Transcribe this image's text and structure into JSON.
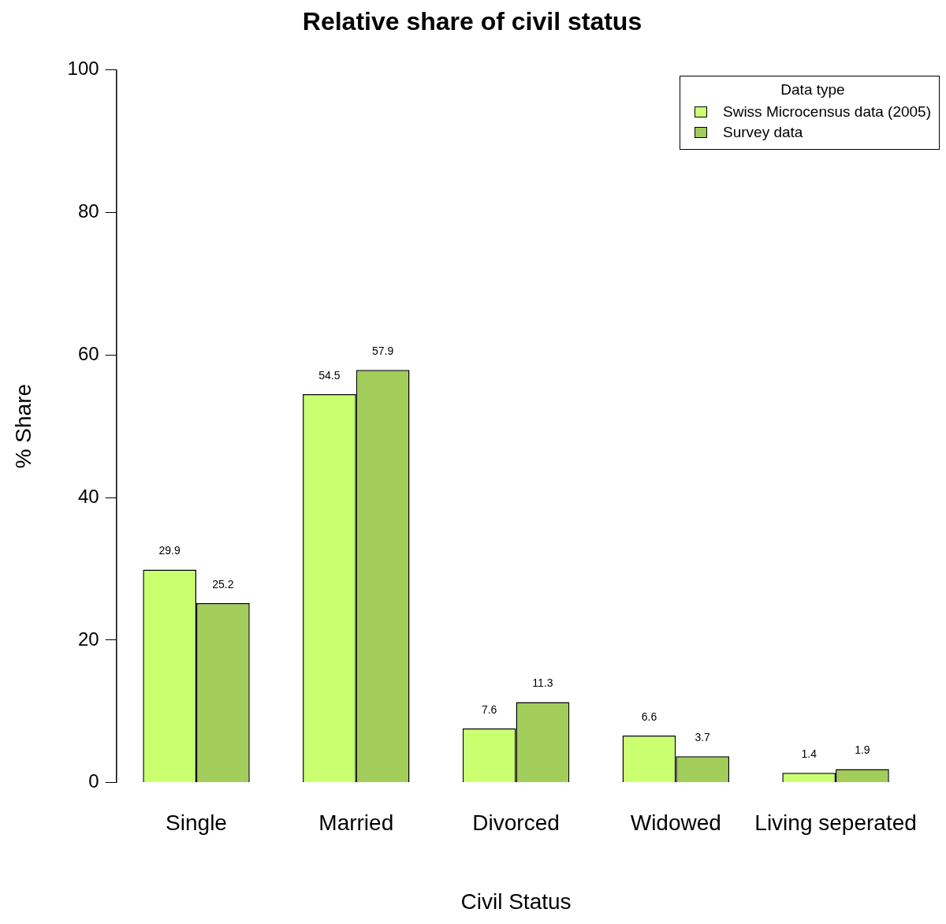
{
  "chart_data": {
    "type": "bar",
    "title": "Relative share of civil status",
    "xlabel": "Civil Status",
    "ylabel": "% Share",
    "legend_title": "Data type",
    "categories": [
      "Single",
      "Married",
      "Divorced",
      "Widowed",
      "Living seperated"
    ],
    "series": [
      {
        "name": "Swiss Microcensus data (2005)",
        "color": "#caff70",
        "values": [
          29.9,
          54.5,
          7.6,
          6.6,
          1.4
        ]
      },
      {
        "name": "Survey data",
        "color": "#a2cd5a",
        "values": [
          25.2,
          57.9,
          11.3,
          3.7,
          1.9
        ]
      }
    ],
    "ylim": [
      0,
      100
    ],
    "yticks": [
      0,
      20,
      40,
      60,
      80,
      100
    ],
    "grid": false,
    "legend": "top right",
    "data_labels": true
  }
}
